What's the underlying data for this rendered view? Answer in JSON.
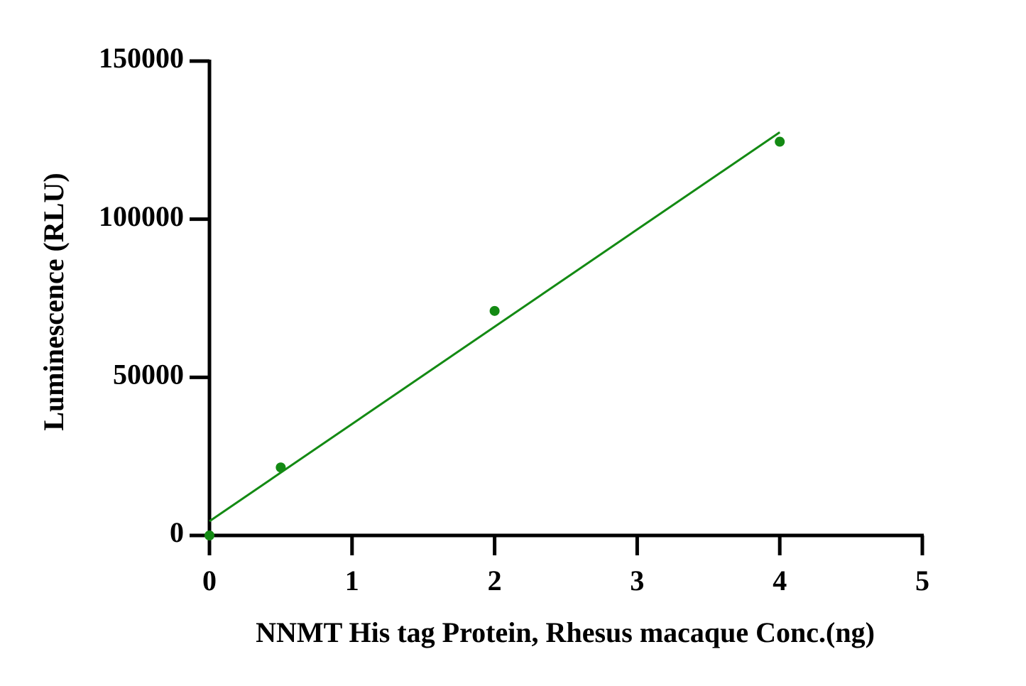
{
  "chart_data": {
    "type": "scatter",
    "x_label": "NNMT His tag Protein, Rhesus macaque Conc.(ng)",
    "y_label": "Luminescence (RLU)",
    "x": [
      0,
      0.5,
      2,
      4
    ],
    "values": [
      0,
      21500,
      71000,
      124500
    ],
    "color": "#138a13",
    "fit": {
      "x": [
        0,
        4
      ],
      "values": [
        4500,
        127500
      ],
      "color": "#138a13"
    },
    "xlim": [
      0,
      5
    ],
    "xticks": [
      0,
      1,
      2,
      3,
      4,
      5
    ],
    "ylim": [
      0,
      150000
    ],
    "yticks": [
      0,
      50000,
      100000,
      150000
    ]
  }
}
